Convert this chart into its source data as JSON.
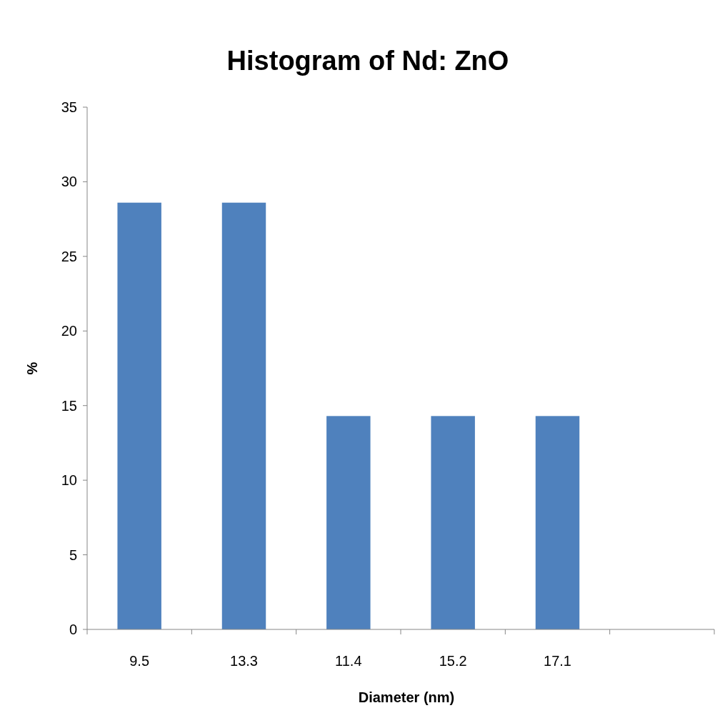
{
  "chart_data": {
    "type": "bar",
    "title": "Histogram of Nd: ZnO",
    "xlabel": "Diameter (nm)",
    "ylabel": "%",
    "categories": [
      "9.5",
      "13.3",
      "11.4",
      "15.2",
      "17.1",
      null
    ],
    "values": [
      28.6,
      28.6,
      14.3,
      14.3,
      14.3,
      null
    ],
    "color": "#4f81bd",
    "ylim": [
      0,
      35
    ],
    "yticks": [
      0,
      5,
      10,
      15,
      20,
      25,
      30,
      35
    ],
    "grid": false
  }
}
